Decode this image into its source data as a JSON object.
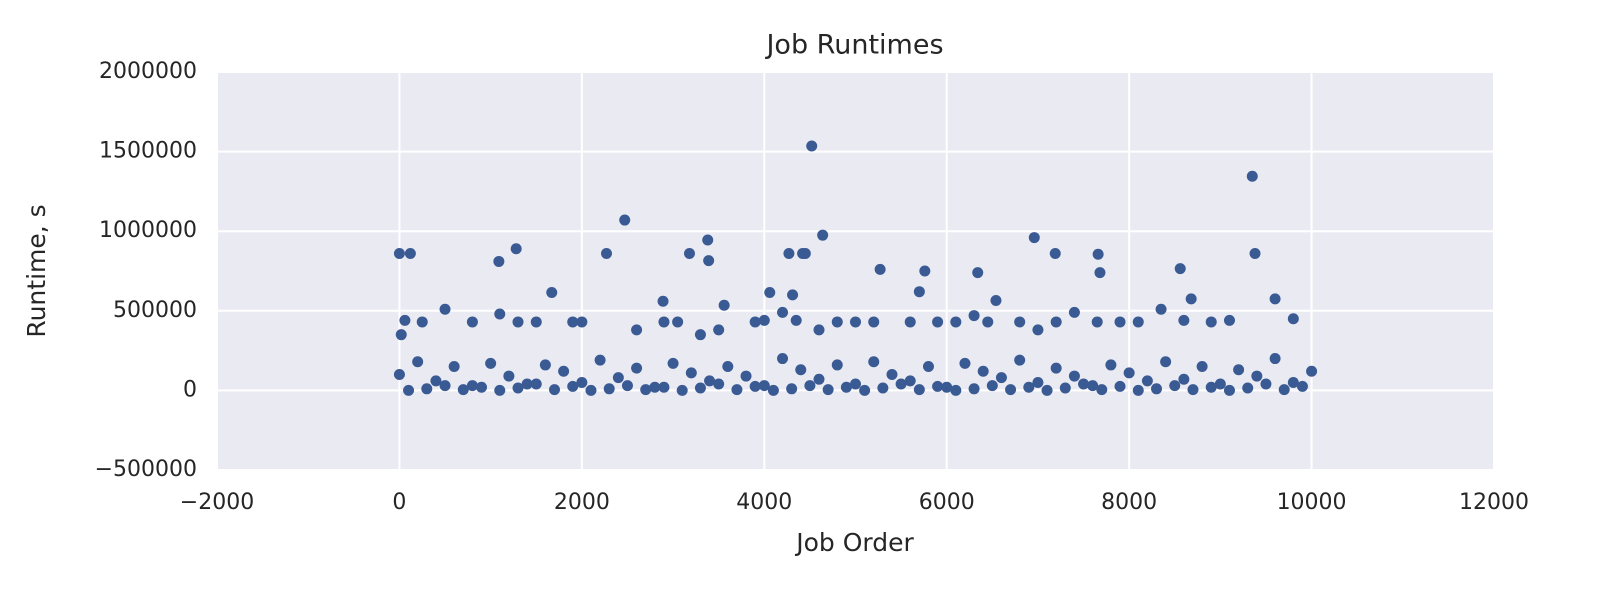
{
  "chart_data": {
    "type": "scatter",
    "title": "Job Runtimes",
    "x_label": "Job Order",
    "y_label": "Runtime, s",
    "color": "#3a5a94",
    "grid": true,
    "x": [
      0,
      120,
      1090,
      1280,
      1670,
      2270,
      2470,
      2890,
      3180,
      3380,
      3390,
      3560,
      4060,
      4270,
      4310,
      4420,
      4450,
      4520,
      4640,
      5270,
      5700,
      5760,
      6340,
      6540,
      6960,
      7190,
      7660,
      7680,
      8560,
      8680,
      9350,
      9380,
      9600,
      20,
      60,
      250,
      500,
      800,
      1100,
      1300,
      1500,
      1900,
      2000,
      2600,
      2900,
      3050,
      3300,
      3500,
      3900,
      4000,
      4200,
      4350,
      4600,
      4800,
      5000,
      5200,
      5600,
      5900,
      6100,
      6300,
      6450,
      6800,
      7000,
      7200,
      7400,
      7650,
      7900,
      8100,
      8350,
      8600,
      8900,
      9100,
      9800,
      0,
      200,
      400,
      600,
      800,
      1000,
      1200,
      1400,
      1600,
      1800,
      2000,
      2200,
      2400,
      2600,
      2800,
      3000,
      3200,
      3400,
      3600,
      3800,
      4000,
      4200,
      4400,
      4600,
      4800,
      5000,
      5200,
      5400,
      5600,
      5800,
      6000,
      6200,
      6400,
      6600,
      6800,
      7000,
      7200,
      7400,
      7600,
      7800,
      8000,
      8200,
      8400,
      8600,
      8800,
      9000,
      9200,
      9400,
      9600,
      9800,
      10000,
      100,
      300,
      500,
      700,
      900,
      1100,
      1300,
      1500,
      1700,
      1900,
      2100,
      2300,
      2500,
      2700,
      2900,
      3100,
      3300,
      3500,
      3700,
      3900,
      4100,
      4300,
      4500,
      4700,
      4900,
      5100,
      5300,
      5500,
      5700,
      5900,
      6100,
      6300,
      6500,
      6700,
      6900,
      7100,
      7300,
      7500,
      7700,
      7900,
      8100,
      8300,
      8500,
      8700,
      8900,
      9100,
      9300,
      9500,
      9700,
      9900
    ],
    "values": [
      860000,
      860000,
      810000,
      890000,
      615000,
      860000,
      1070000,
      560000,
      860000,
      945000,
      815000,
      535000,
      615000,
      860000,
      600000,
      860000,
      860000,
      1535000,
      975000,
      760000,
      620000,
      750000,
      740000,
      565000,
      960000,
      860000,
      855000,
      740000,
      765000,
      575000,
      1345000,
      860000,
      575000,
      350000,
      440000,
      430000,
      510000,
      430000,
      480000,
      430000,
      430000,
      430000,
      430000,
      380000,
      430000,
      430000,
      350000,
      380000,
      430000,
      440000,
      490000,
      440000,
      380000,
      430000,
      430000,
      430000,
      430000,
      430000,
      430000,
      470000,
      430000,
      430000,
      380000,
      430000,
      490000,
      430000,
      430000,
      430000,
      510000,
      440000,
      430000,
      440000,
      450000,
      100000,
      180000,
      60000,
      150000,
      30000,
      170000,
      90000,
      40000,
      160000,
      120000,
      50000,
      190000,
      80000,
      140000,
      20000,
      170000,
      110000,
      60000,
      150000,
      90000,
      30000,
      200000,
      130000,
      70000,
      160000,
      40000,
      180000,
      100000,
      60000,
      150000,
      20000,
      170000,
      120000,
      80000,
      190000,
      50000,
      140000,
      90000,
      30000,
      160000,
      110000,
      60000,
      180000,
      70000,
      150000,
      40000,
      130000,
      90000,
      200000,
      50000,
      120000,
      0,
      10000,
      30000,
      5000,
      20000,
      0,
      15000,
      40000,
      5000,
      25000,
      0,
      10000,
      30000,
      5000,
      20000,
      0,
      15000,
      40000,
      5000,
      25000,
      0,
      10000,
      30000,
      5000,
      20000,
      0,
      15000,
      40000,
      5000,
      25000,
      0,
      10000,
      30000,
      5000,
      20000,
      0,
      15000,
      40000,
      5000,
      25000,
      0,
      10000,
      30000,
      5000,
      20000,
      0,
      15000,
      40000,
      5000,
      25000
    ],
    "xlim": [
      -2000,
      12000
    ],
    "xticks": [
      {
        "value": -2000,
        "label": "−2000"
      },
      0,
      2000,
      4000,
      6000,
      8000,
      10000,
      12000
    ],
    "ylim": [
      -500000,
      2000000
    ],
    "yticks": [
      {
        "value": -500000,
        "label": "−500000"
      },
      0,
      500000,
      1000000,
      1500000,
      2000000
    ]
  }
}
